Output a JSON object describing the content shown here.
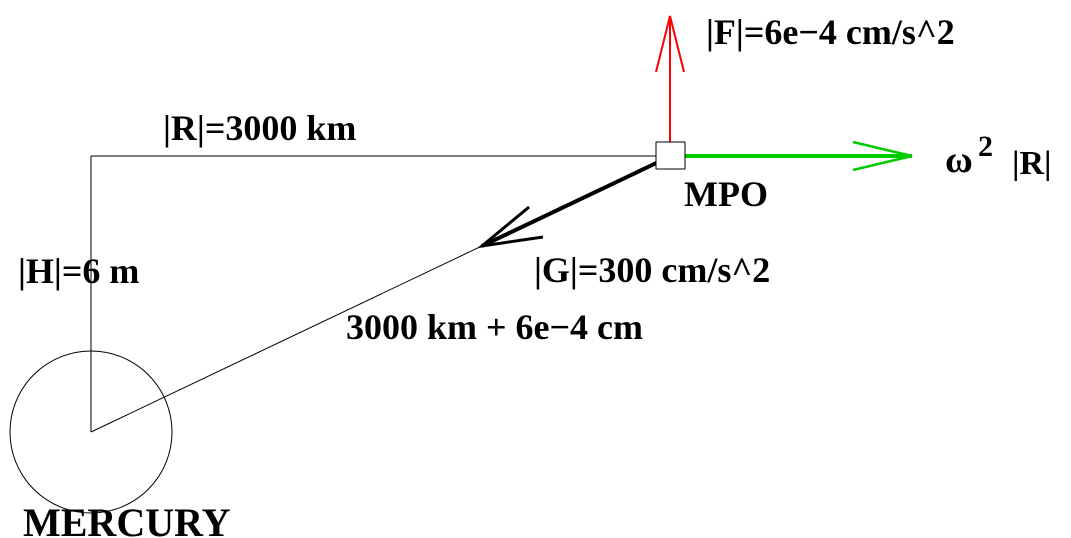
{
  "diagram": {
    "labels": {
      "force": "|F|=6e−4 cm/s^2",
      "radius": "|R|=3000 km",
      "omega": "ω",
      "omega_exp": "2",
      "omega_r": "|R|",
      "spacecraft": "MPO",
      "height": "|H|=6 m",
      "gravity": "|G|=300 cm/s^2",
      "distance": "3000 km + 6e−4 cm",
      "planet": "MERCURY"
    },
    "colors": {
      "force_arrow": "#ff0000",
      "centrifugal_arrow": "#00cc00",
      "gravity_arrow": "#000000",
      "lines": "#000000",
      "background": "#ffffff"
    }
  }
}
